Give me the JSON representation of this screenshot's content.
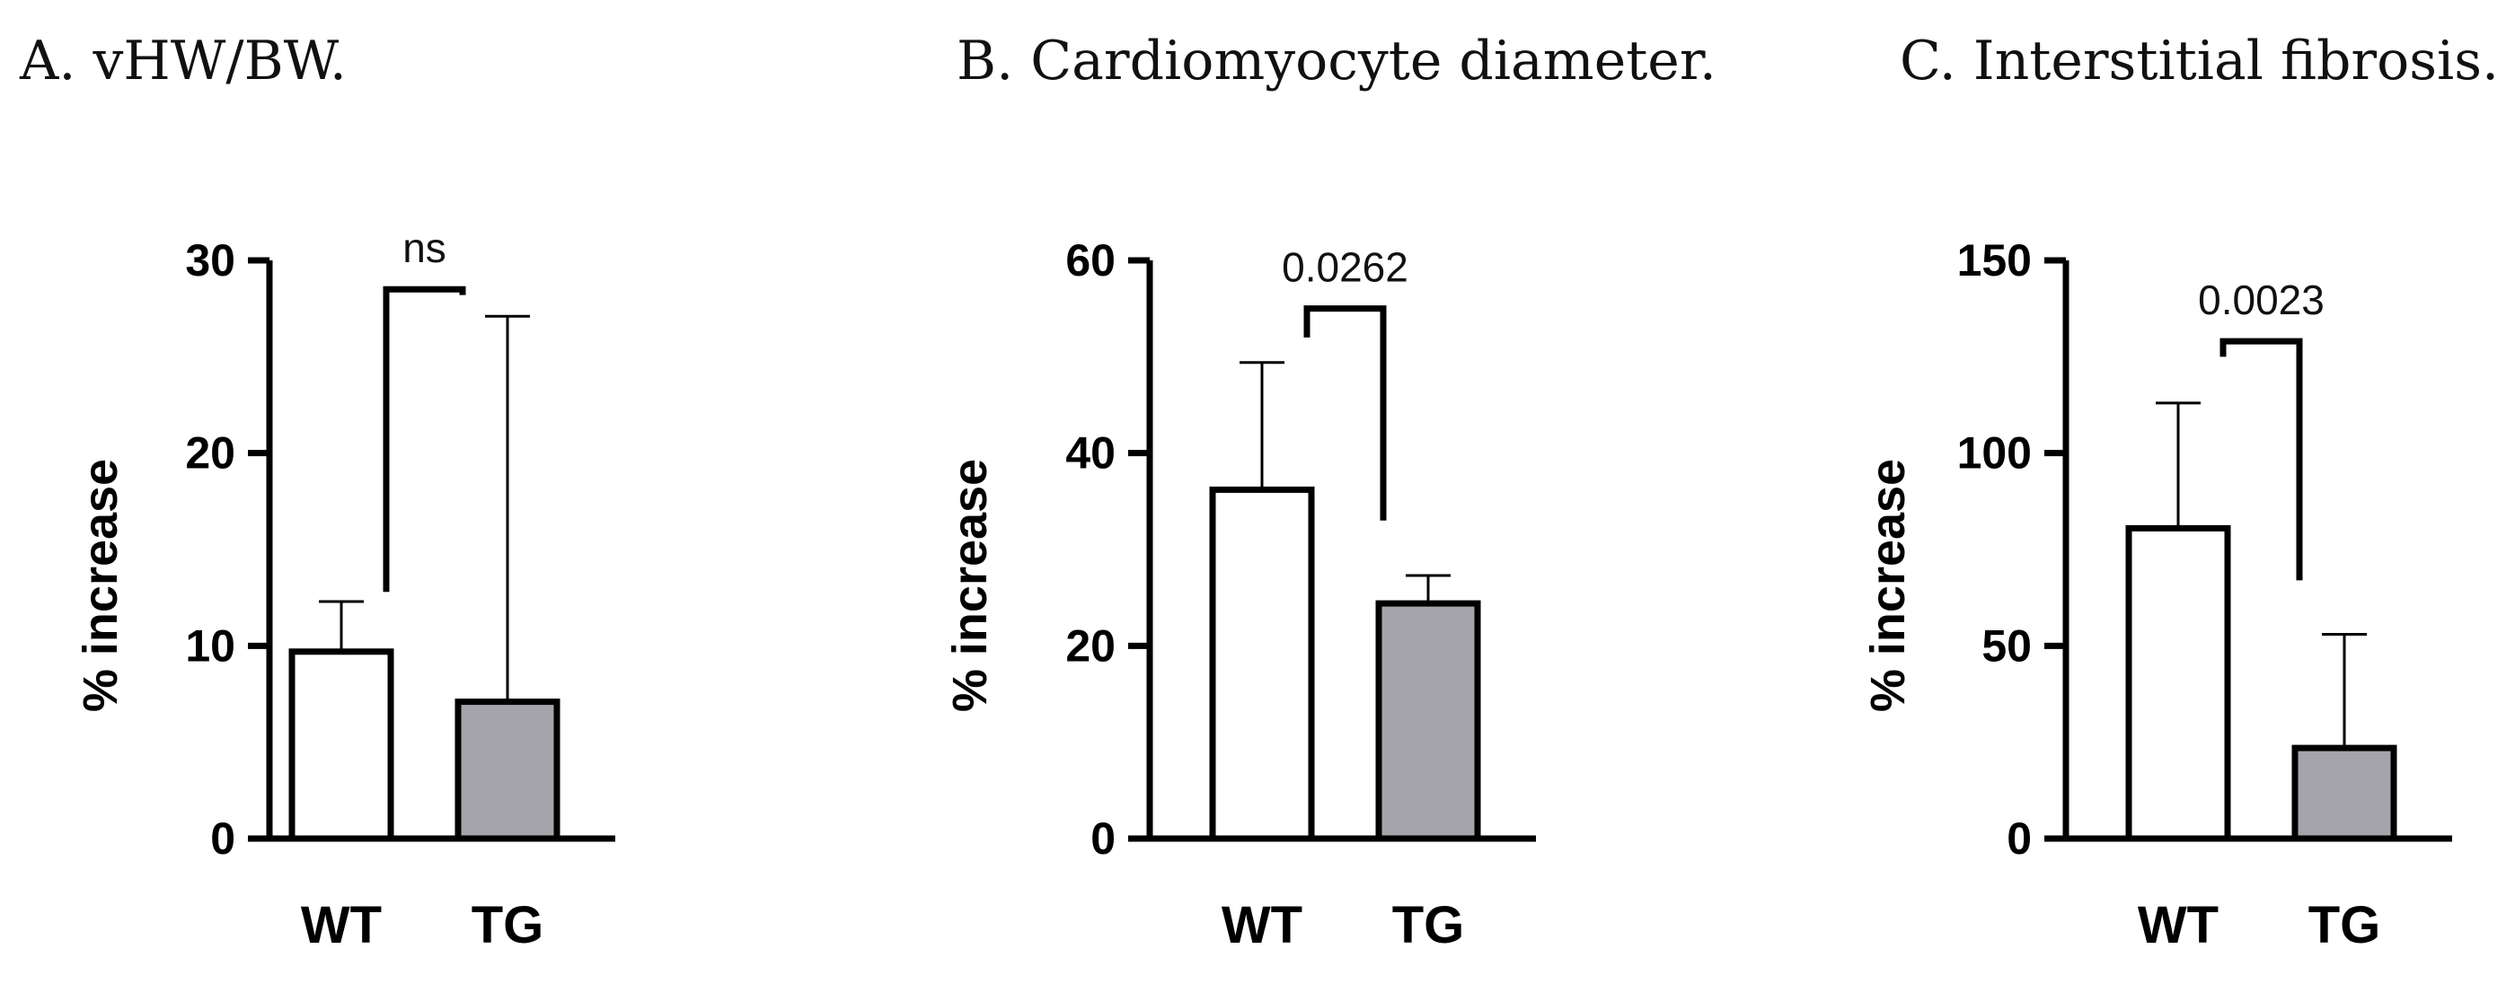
{
  "chart_data": [
    {
      "type": "bar",
      "title": "A. vHW/BW.",
      "ylabel": "% increase",
      "ylim": [
        0,
        30
      ],
      "yticks": [
        0,
        10,
        20,
        30
      ],
      "categories": [
        "WT",
        "TG"
      ],
      "values": [
        9.7,
        7.1
      ],
      "errors": [
        2.6,
        20.0
      ],
      "bar_colors": [
        "#ffffff",
        "#a5a4aa"
      ],
      "significance": {
        "label": "ns",
        "y": 28.5,
        "left_drop": 12.8,
        "right_drop": 28.2
      }
    },
    {
      "type": "bar",
      "title": "B. Cardiomyocyte diameter.",
      "ylabel": "% increase",
      "ylim": [
        0,
        60
      ],
      "yticks": [
        0,
        20,
        40,
        60
      ],
      "categories": [
        "WT",
        "TG"
      ],
      "values": [
        36.2,
        24.4
      ],
      "errors": [
        13.2,
        2.9
      ],
      "bar_colors": [
        "#ffffff",
        "#a5a4aa"
      ],
      "significance": {
        "label": "0.0262",
        "y": 55.0,
        "left_drop": 52.0,
        "right_drop": 33.0
      }
    },
    {
      "type": "bar",
      "title": "C. Interstitial fibrosis.",
      "ylabel": "% increase",
      "ylim": [
        0,
        150
      ],
      "yticks": [
        0,
        50,
        100,
        150
      ],
      "categories": [
        "WT",
        "TG"
      ],
      "values": [
        80.5,
        23.5
      ],
      "errors": [
        32.5,
        29.5
      ],
      "bar_colors": [
        "#ffffff",
        "#a5a4aa"
      ],
      "significance": {
        "label": "0.0023",
        "y": 129,
        "left_drop": 125,
        "right_drop": 67
      }
    }
  ]
}
